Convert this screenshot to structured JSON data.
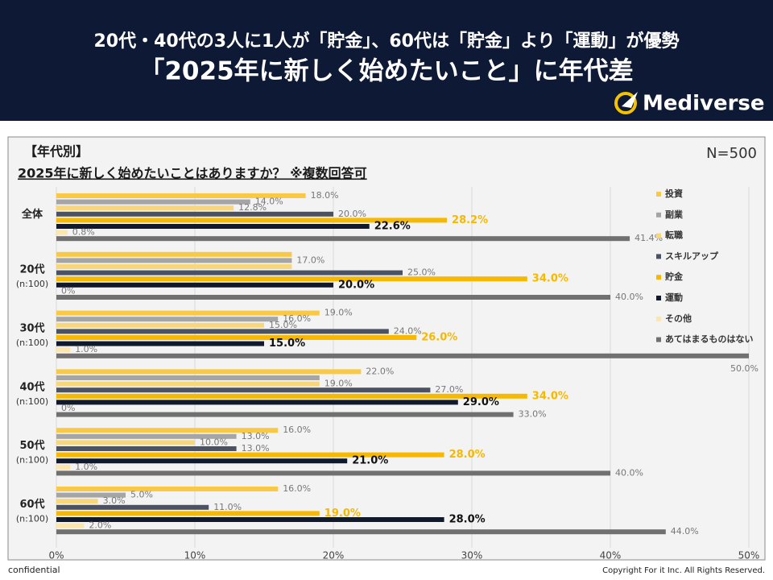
{
  "header": {
    "line1": "20代・40代の3人に1人が「貯金」、60代は「貯金」より「運動」が優勢",
    "line2": "「2025年に新しく始めたいこと」に年代差",
    "logo": "Mediverse"
  },
  "chart_data": {
    "type": "hbar",
    "panel_title": "【年代別】",
    "title": "2025年に新しく始めたいことはありますか？ ※複数回答可",
    "n_label": "N=500",
    "categories": [
      "全体",
      "20代",
      "30代",
      "40代",
      "50代",
      "60代"
    ],
    "category_notes": [
      null,
      "(n:100)",
      "(n:100)",
      "(n:100)",
      "(n:100)",
      "(n:100)"
    ],
    "series": [
      {
        "name": "投資",
        "color": "#f9c844",
        "values": [
          18.0,
          17.0,
          19.0,
          22.0,
          16.0,
          16.0
        ],
        "value_labels": [
          "18.0%",
          null,
          "19.0%",
          "22.0%",
          "16.0%",
          "16.0%"
        ]
      },
      {
        "name": "副業",
        "color": "#a5a5a5",
        "values": [
          14.0,
          17.0,
          16.0,
          19.0,
          13.0,
          5.0
        ],
        "value_labels": [
          "14.0%",
          "17.0%",
          "16.0%",
          null,
          "13.0%",
          "5.0%"
        ]
      },
      {
        "name": "転職",
        "color": "#f8d67c",
        "values": [
          12.8,
          17.0,
          15.0,
          19.0,
          10.0,
          3.0
        ],
        "value_labels": [
          "12.8%",
          null,
          "15.0%",
          "19.0%",
          "10.0%",
          "3.0%"
        ]
      },
      {
        "name": "スキルアップ",
        "color": "#4b5262",
        "values": [
          20.0,
          25.0,
          24.0,
          27.0,
          13.0,
          11.0
        ],
        "value_labels": [
          "20.0%",
          "25.0%",
          "24.0%",
          "27.0%",
          "13.0%",
          "11.0%"
        ]
      },
      {
        "name": "貯金",
        "color": "#f6b800",
        "values": [
          28.2,
          34.0,
          26.0,
          34.0,
          28.0,
          19.0
        ],
        "value_labels": [
          "28.2%",
          "34.0%",
          "26.0%",
          "34.0%",
          "28.0%",
          "19.0%"
        ]
      },
      {
        "name": "運動",
        "color": "#111a2c",
        "values": [
          22.6,
          20.0,
          15.0,
          29.0,
          21.0,
          28.0
        ],
        "value_labels": [
          "22.6%",
          "20.0%",
          "15.0%",
          "29.0%",
          "21.0%",
          "28.0%"
        ]
      },
      {
        "name": "その他",
        "color": "#fbe6ae",
        "values": [
          0.8,
          0,
          1.0,
          0,
          1.0,
          2.0
        ],
        "value_labels": [
          "0.8%",
          "0%",
          "1.0%",
          "0%",
          "1.0%",
          "2.0%"
        ]
      },
      {
        "name": "あてはまるものはない",
        "color": "#707070",
        "values": [
          41.4,
          40.0,
          50.0,
          33.0,
          40.0,
          44.0
        ],
        "value_labels": [
          "41.4%",
          "40.0%",
          "50.0%",
          "33.0%",
          "40.0%",
          "44.0%"
        ]
      }
    ],
    "xlim": [
      0,
      50
    ],
    "xticks": [
      {
        "value": 0,
        "label": "0%"
      },
      {
        "value": 10,
        "label": "10%"
      },
      {
        "value": 20,
        "label": "20%"
      },
      {
        "value": 30,
        "label": "30%"
      },
      {
        "value": 40,
        "label": "40%"
      },
      {
        "value": 50,
        "label": "50%"
      }
    ],
    "grid": true
  },
  "footer": {
    "left": "confidential",
    "right": "Copyright For it Inc. All Rights Reserved."
  }
}
